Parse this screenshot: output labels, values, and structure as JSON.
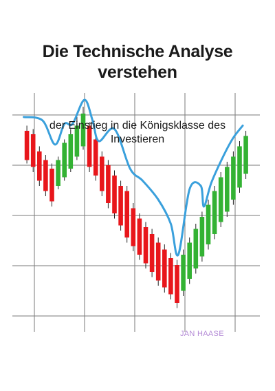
{
  "book": {
    "title": "Die Technische Analyse\nverstehen",
    "subtitle": "der Einstieg in die Königsklasse des\nInvestieren",
    "author": "JAN HAASE"
  },
  "colors": {
    "bullish": "#33b233",
    "bearish": "#e8161b",
    "trend_line": "#3aa0dc",
    "grid": "#7a7a7a",
    "title": "#1a1a1a",
    "author": "#b48ad6"
  },
  "candles": [
    {
      "t": 1,
      "open": 6.8,
      "close": 5.1,
      "high": 7.1,
      "low": 4.9
    },
    {
      "t": 2,
      "open": 6.6,
      "close": 4.7,
      "high": 6.9,
      "low": 4.4
    },
    {
      "t": 3,
      "open": 5.6,
      "close": 3.9,
      "high": 5.9,
      "low": 3.6
    },
    {
      "t": 4,
      "open": 5.1,
      "close": 3.3,
      "high": 5.4,
      "low": 3.0
    },
    {
      "t": 5,
      "open": 4.6,
      "close": 2.7,
      "high": 4.9,
      "low": 2.4
    },
    {
      "t": 6,
      "open": 3.6,
      "close": 5.1,
      "high": 5.3,
      "low": 3.4
    },
    {
      "t": 7,
      "open": 4.1,
      "close": 6.1,
      "high": 6.3,
      "low": 3.9
    },
    {
      "t": 8,
      "open": 4.6,
      "close": 6.6,
      "high": 6.9,
      "low": 4.4
    },
    {
      "t": 9,
      "open": 5.3,
      "close": 7.1,
      "high": 7.6,
      "low": 5.1
    },
    {
      "t": 10,
      "open": 5.9,
      "close": 7.8,
      "high": 8.2,
      "low": 5.7
    },
    {
      "t": 11,
      "open": 7.1,
      "close": 4.7,
      "high": 7.3,
      "low": 4.4
    },
    {
      "t": 12,
      "open": 6.3,
      "close": 4.2,
      "high": 6.6,
      "low": 3.9
    },
    {
      "t": 13,
      "open": 5.3,
      "close": 3.3,
      "high": 5.6,
      "low": 3.0
    },
    {
      "t": 14,
      "open": 4.8,
      "close": 2.6,
      "high": 5.1,
      "low": 2.3
    },
    {
      "t": 15,
      "open": 4.2,
      "close": 2.0,
      "high": 4.5,
      "low": 1.7
    },
    {
      "t": 16,
      "open": 3.6,
      "close": 1.3,
      "high": 3.9,
      "low": 1.0
    },
    {
      "t": 17,
      "open": 3.3,
      "close": 0.6,
      "high": 3.6,
      "low": 0.3
    },
    {
      "t": 18,
      "open": 2.3,
      "close": 0.1,
      "high": 2.6,
      "low": -0.2
    },
    {
      "t": 19,
      "open": 1.7,
      "close": -0.4,
      "high": 2.0,
      "low": -0.7
    },
    {
      "t": 20,
      "open": 1.2,
      "close": -0.9,
      "high": 1.5,
      "low": -1.2
    },
    {
      "t": 21,
      "open": 0.8,
      "close": -1.4,
      "high": 1.1,
      "low": -1.7
    },
    {
      "t": 22,
      "open": 0.3,
      "close": -1.9,
      "high": 0.6,
      "low": -2.2
    },
    {
      "t": 23,
      "open": -0.1,
      "close": -2.3,
      "high": 0.2,
      "low": -2.6
    },
    {
      "t": 24,
      "open": -0.6,
      "close": -2.7,
      "high": -0.3,
      "low": -3.0
    },
    {
      "t": 25,
      "open": -1.0,
      "close": -3.2,
      "high": -0.7,
      "low": -3.5
    },
    {
      "t": 26,
      "open": -2.5,
      "close": -0.4,
      "high": -0.1,
      "low": -2.8
    },
    {
      "t": 27,
      "open": -1.8,
      "close": 0.3,
      "high": 0.6,
      "low": -2.1
    },
    {
      "t": 28,
      "open": -1.2,
      "close": 1.1,
      "high": 1.4,
      "low": -1.5
    },
    {
      "t": 29,
      "open": -0.5,
      "close": 1.8,
      "high": 2.1,
      "low": -0.8
    },
    {
      "t": 30,
      "open": 0.2,
      "close": 2.5,
      "high": 2.8,
      "low": -0.1
    },
    {
      "t": 31,
      "open": 0.8,
      "close": 3.3,
      "high": 3.6,
      "low": 0.5
    },
    {
      "t": 32,
      "open": 1.5,
      "close": 4.1,
      "high": 4.4,
      "low": 1.2
    },
    {
      "t": 33,
      "open": 2.1,
      "close": 4.7,
      "high": 5.0,
      "low": 1.8
    },
    {
      "t": 34,
      "open": 2.8,
      "close": 5.3,
      "high": 5.6,
      "low": 2.5
    },
    {
      "t": 35,
      "open": 3.5,
      "close": 5.9,
      "high": 6.2,
      "low": 3.2
    },
    {
      "t": 36,
      "open": 4.3,
      "close": 6.5,
      "high": 6.8,
      "low": 4.0
    }
  ],
  "trend": [
    {
      "t": 0.5,
      "v": 7.6
    },
    {
      "t": 3.5,
      "v": 7.4
    },
    {
      "t": 5.5,
      "v": 6.0
    },
    {
      "t": 7.0,
      "v": 7.2
    },
    {
      "t": 8.3,
      "v": 7.2
    },
    {
      "t": 10.2,
      "v": 8.6
    },
    {
      "t": 11.5,
      "v": 7.4
    },
    {
      "t": 12.5,
      "v": 6.2
    },
    {
      "t": 15.0,
      "v": 6.9
    },
    {
      "t": 17.5,
      "v": 4.6
    },
    {
      "t": 19.5,
      "v": 3.9
    },
    {
      "t": 22.0,
      "v": 2.8
    },
    {
      "t": 24.0,
      "v": 1.4
    },
    {
      "t": 25.2,
      "v": -0.4
    },
    {
      "t": 27.0,
      "v": 3.4
    },
    {
      "t": 28.8,
      "v": 3.6
    },
    {
      "t": 29.3,
      "v": 2.4
    },
    {
      "t": 30.5,
      "v": 3.8
    },
    {
      "t": 32.5,
      "v": 5.4
    },
    {
      "t": 34.0,
      "v": 6.4
    },
    {
      "t": 35.5,
      "v": 7.1
    }
  ]
}
